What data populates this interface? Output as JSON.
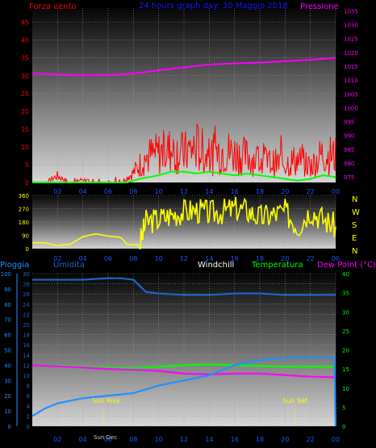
{
  "header": {
    "left_label": "Forza vento",
    "center_label": "24 hours graph day: 30 Maggio 2018",
    "right_label": "Pressione"
  },
  "wind_dir_labels": [
    "N",
    "W",
    "S",
    "E",
    "N"
  ],
  "bottom_header": {
    "pioggia": "Pioggia",
    "umidita": "Umidita",
    "windchill": "Windchill",
    "temperatura": "Temperatura",
    "dewpoint": "Dew Point (°C)"
  },
  "annotations": {
    "sunrise": "Sun Rise",
    "sunset": "Sun Set",
    "overlap": "Sun Dec"
  },
  "colors": {
    "wind_speed": "#ff0000",
    "wind_avg": "#00ff00",
    "pressure": "#ff00ff",
    "direction": "#ffff00",
    "humidity": "#1e66c8",
    "rain": "#1e90ff",
    "temperature": "#00ff00",
    "dewpoint": "#ff00ff",
    "grid": "#9a9a9a"
  },
  "chart_data": [
    {
      "type": "line",
      "name": "wind-pressure",
      "x_ticks": [
        "02",
        "04",
        "06",
        "08",
        "10",
        "12",
        "14",
        "16",
        "18",
        "20",
        "22",
        "00"
      ],
      "left_axis": {
        "label": "Forza vento",
        "ticks": [
          "0",
          "5",
          "10",
          "15",
          "20",
          "25",
          "30",
          "35",
          "40",
          "45"
        ],
        "ylim": [
          0,
          49
        ]
      },
      "right_axis": {
        "label": "Pressione",
        "ticks": [
          "975",
          "980",
          "985",
          "990",
          "995",
          "1000",
          "1005",
          "1010",
          "1015",
          "1020",
          "1025",
          "1030",
          "1035"
        ],
        "ylim": [
          973,
          1036
        ]
      },
      "series": [
        {
          "name": "Pressione",
          "x": [
            0,
            2,
            4,
            6,
            8,
            10,
            12,
            14,
            16,
            18,
            20,
            22,
            24
          ],
          "values": [
            1012.5,
            1012,
            1011.7,
            1011.8,
            1012.3,
            1013.5,
            1014.6,
            1015.6,
            1016,
            1016.3,
            1016.8,
            1017.3,
            1018
          ]
        },
        {
          "name": "Forza vento",
          "x": [
            0,
            1,
            2,
            3,
            4,
            5,
            6,
            7,
            8,
            9,
            10,
            11,
            12,
            13,
            14,
            15,
            16,
            17,
            18,
            19,
            20,
            21,
            22,
            23,
            24
          ],
          "values": [
            0,
            0,
            2,
            0,
            1,
            0,
            0,
            0,
            3,
            8,
            9,
            10,
            9,
            11,
            8,
            10,
            9,
            8,
            7,
            6,
            6,
            7,
            5,
            9,
            8
          ]
        },
        {
          "name": "Forza vento media",
          "x": [
            0,
            2,
            4,
            6,
            7.5,
            8.5,
            10,
            11,
            12,
            13,
            14,
            15,
            16,
            17,
            18,
            19,
            20,
            21,
            22,
            23,
            24
          ],
          "values": [
            0,
            0,
            0,
            0,
            0,
            1,
            2,
            3,
            3,
            2.5,
            3,
            2.5,
            2,
            2.5,
            2,
            1.5,
            1,
            0.5,
            1,
            2,
            1.5
          ]
        }
      ]
    },
    {
      "type": "line",
      "name": "wind-direction",
      "x_ticks": [
        "02",
        "04",
        "06",
        "08",
        "10",
        "12",
        "14",
        "16",
        "18",
        "20",
        "22",
        "00"
      ],
      "left_axis": {
        "ticks": [
          "0",
          "90",
          "180",
          "270",
          "360"
        ],
        "ylim": [
          0,
          360
        ]
      },
      "series": [
        {
          "name": "Direzione",
          "x": [
            0,
            1,
            2,
            3,
            4,
            4.5,
            5,
            6,
            7,
            7.5,
            8,
            8.5,
            9,
            10,
            11,
            12,
            13,
            14,
            15,
            16,
            17,
            18,
            19,
            20,
            21,
            22,
            23,
            24
          ],
          "values": [
            40,
            40,
            20,
            30,
            80,
            90,
            100,
            85,
            75,
            30,
            25,
            30,
            180,
            200,
            230,
            250,
            260,
            240,
            250,
            270,
            260,
            210,
            230,
            250,
            150,
            260,
            200,
            150
          ]
        }
      ]
    },
    {
      "type": "line",
      "name": "temp-hum-rain",
      "x_ticks": [
        "02",
        "04",
        "06",
        "08",
        "10",
        "12",
        "14",
        "16",
        "18",
        "20",
        "22",
        "00"
      ],
      "left_axis": {
        "label": "Pioggia",
        "ticks": [
          "0",
          "10",
          "20",
          "30",
          "40",
          "50",
          "60",
          "70",
          "80",
          "90",
          "100"
        ],
        "ylim": [
          0,
          100
        ]
      },
      "humidity_axis": {
        "label": "Umidita",
        "ticks": [
          "0",
          "2",
          "4",
          "6",
          "8",
          "10",
          "12",
          "14",
          "16",
          "18",
          "20",
          "22",
          "24",
          "26",
          "28",
          "30"
        ],
        "ylim": [
          0,
          30
        ]
      },
      "right_axis": {
        "label": "Temperatura",
        "ticks": [
          "0",
          "5",
          "10",
          "15",
          "20",
          "25",
          "30",
          "35",
          "40"
        ],
        "ylim": [
          0,
          40
        ]
      },
      "series": [
        {
          "name": "Umidita",
          "x": [
            0,
            2,
            4,
            6,
            7,
            8,
            8.5,
            9,
            10,
            12,
            14,
            16,
            18,
            20,
            22,
            24
          ],
          "values": [
            96,
            96,
            96,
            97,
            97,
            96,
            92,
            88,
            87,
            86,
            86,
            87,
            87,
            86,
            86,
            86
          ]
        },
        {
          "name": "Temperatura",
          "x": [
            0,
            2,
            4,
            6,
            8,
            10,
            12,
            14,
            16,
            18,
            20,
            22,
            24
          ],
          "values": [
            16,
            15.8,
            15.6,
            15.3,
            15.2,
            15.6,
            16,
            16.2,
            16,
            15.8,
            15.6,
            15.6,
            15.6
          ]
        },
        {
          "name": "Dew Point",
          "x": [
            0,
            2,
            4,
            6,
            8,
            10,
            12,
            14,
            16,
            18,
            20,
            22,
            24
          ],
          "values": [
            16,
            15.7,
            15.4,
            15,
            14.8,
            14.5,
            13.8,
            13.6,
            13.8,
            13.8,
            13.4,
            13,
            12.8
          ]
        },
        {
          "name": "Pioggia",
          "x": [
            0,
            1,
            2,
            4,
            6,
            8,
            10,
            12,
            14,
            16,
            18,
            20,
            22,
            23.9,
            24
          ],
          "values": [
            2,
            3.5,
            4.5,
            5.5,
            6,
            6.5,
            8,
            9,
            10,
            12,
            13,
            13.5,
            13.5,
            13.5,
            0
          ]
        }
      ],
      "sunrise_hour": 5.6,
      "sunset_hour": 20.8
    }
  ]
}
